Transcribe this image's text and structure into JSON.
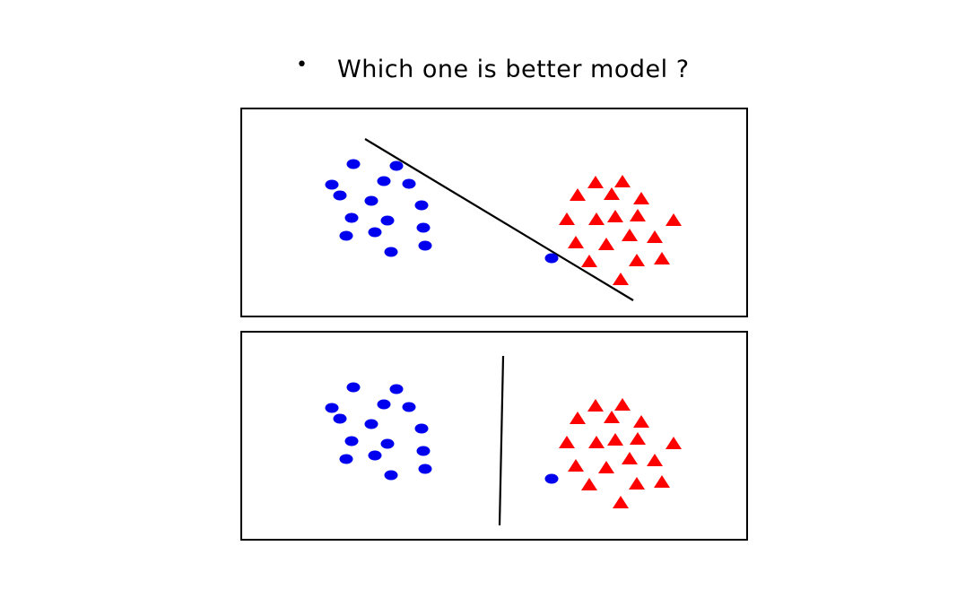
{
  "slide": {
    "bullet": "•",
    "title": "Which one is better model ?"
  },
  "colors": {
    "class_a": "#0000ee",
    "class_b": "#ff0000",
    "boundary": "#000000"
  },
  "legend": {
    "class_a_marker": "circle",
    "class_b_marker": "triangle"
  }
}
